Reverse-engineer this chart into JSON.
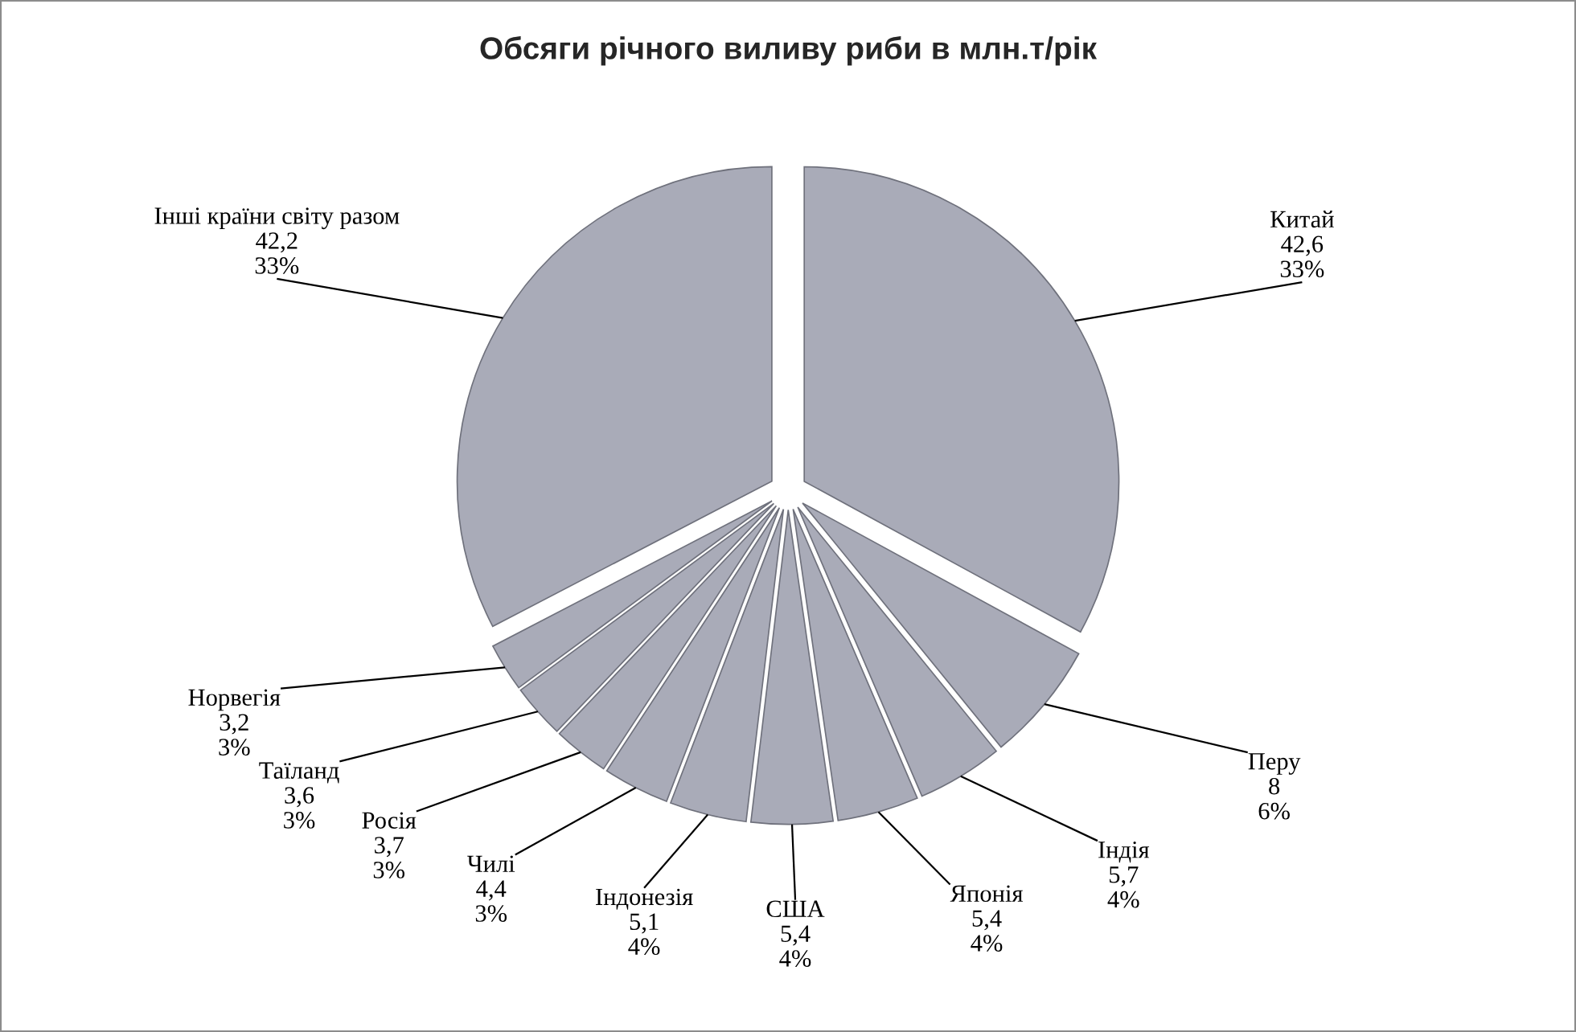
{
  "chart_data": {
    "type": "pie",
    "title": "Обсяги річного виливу риби в млн.т/рік",
    "categories": [
      "Китай",
      "Перу",
      "Індія",
      "Японія",
      "США",
      "Індонезія",
      "Чилі",
      "Росія",
      "Таїланд",
      "Норвегія",
      "Інші країни світу разом"
    ],
    "values": [
      42.6,
      8,
      5.7,
      5.4,
      5.4,
      5.1,
      4.4,
      3.7,
      3.6,
      3.2,
      42.2
    ],
    "value_labels": [
      "42,6\n33%",
      "8\n6%",
      "5,7\n4%",
      "5,4\n4%",
      "5,4\n4%",
      "5,1\n4%",
      "4,4\n3%",
      "3,7\n3%",
      "3,6\n3%",
      "3,2\n3%",
      "42,2\n33%"
    ],
    "colors": [
      "#a9abb8",
      "#a9abb8",
      "#a9abb8",
      "#a9abb8",
      "#a9abb8",
      "#a9abb8",
      "#a9abb8",
      "#a9abb8",
      "#a9abb8",
      "#a9abb8",
      "#a9abb8"
    ]
  }
}
